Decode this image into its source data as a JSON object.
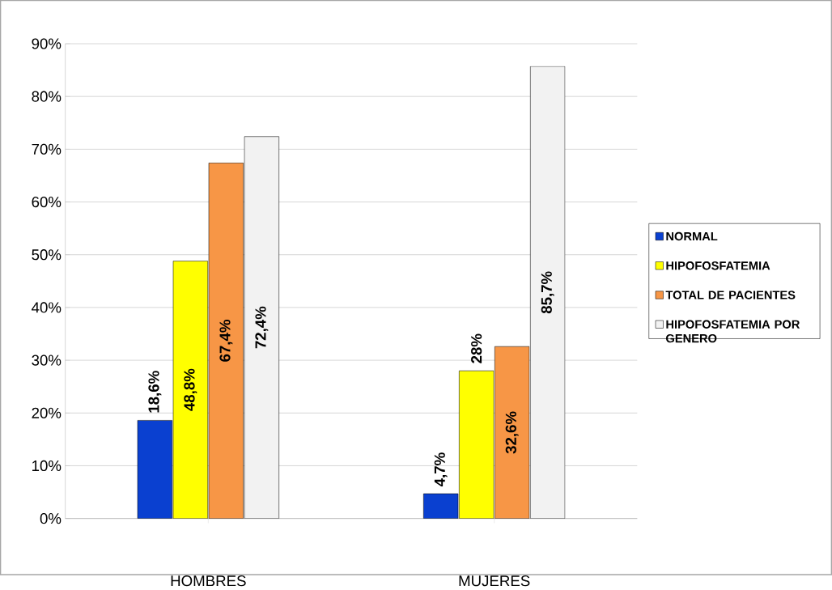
{
  "chart_data": {
    "type": "bar",
    "categories": [
      "HOMBRES",
      "MUJERES"
    ],
    "series": [
      {
        "name": "NORMAL",
        "color": "#0a40d0",
        "values": [
          18.6,
          4.7
        ],
        "value_labels": [
          "18,6%",
          "4,7%"
        ]
      },
      {
        "name": "HIPOFOSFATEMIA",
        "color": "#ffff00",
        "values": [
          48.8,
          28
        ],
        "value_labels": [
          "48,8%",
          "28%"
        ]
      },
      {
        "name": "TOTAL DE PACIENTES",
        "color": "#f79646",
        "values": [
          67.4,
          32.6
        ],
        "value_labels": [
          "67,4%",
          "32,6%"
        ]
      },
      {
        "name": "HIPOFOSFATEMIA POR GENERO",
        "color": "#f2f2f2",
        "values": [
          72.4,
          85.7
        ],
        "value_labels": [
          "72,4%",
          "85,7%"
        ]
      }
    ],
    "ylim": [
      0,
      90
    ],
    "yticks": [
      {
        "value": 0,
        "label": "0%"
      },
      {
        "value": 10,
        "label": "10%"
      },
      {
        "value": 20,
        "label": "20%"
      },
      {
        "value": 30,
        "label": "30%"
      },
      {
        "value": 40,
        "label": "40%"
      },
      {
        "value": 50,
        "label": "50%"
      },
      {
        "value": 60,
        "label": "60%"
      },
      {
        "value": 70,
        "label": "70%"
      },
      {
        "value": 80,
        "label": "80%"
      },
      {
        "value": 90,
        "label": "90%"
      }
    ],
    "grid": "y",
    "legend": "right"
  }
}
